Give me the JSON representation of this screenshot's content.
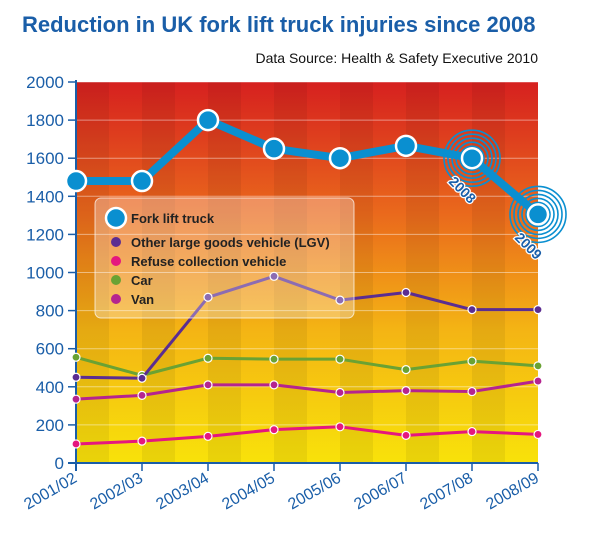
{
  "chart_data": {
    "type": "line",
    "title": "Reduction in UK fork lift truck injuries since 2008",
    "subtitle": "Data Source: Health & Safety Executive 2010",
    "categories": [
      "2001/02",
      "2002/03",
      "2003/04",
      "2004/05",
      "2005/06",
      "2006/07",
      "2007/08",
      "2008/09"
    ],
    "ylim": [
      0,
      2000
    ],
    "yticks": [
      0,
      200,
      400,
      600,
      800,
      1000,
      1200,
      1400,
      1600,
      1800,
      2000
    ],
    "grid": true,
    "legend_position": "center-left",
    "series": [
      {
        "name": "Fork lift truck",
        "color": "#0a8fd0",
        "values": [
          1480,
          1480,
          1800,
          1650,
          1600,
          1665,
          1600,
          1305
        ]
      },
      {
        "name": "Other large goods vehicle (LGV)",
        "color": "#5b2d91",
        "values": [
          450,
          445,
          870,
          980,
          855,
          895,
          805,
          805
        ]
      },
      {
        "name": "Refuse collection vehicle",
        "color": "#e5177e",
        "values": [
          100,
          115,
          140,
          175,
          190,
          145,
          165,
          150
        ]
      },
      {
        "name": "Car",
        "color": "#6aa233",
        "values": [
          555,
          460,
          550,
          545,
          545,
          490,
          535,
          510
        ]
      },
      {
        "name": "Van",
        "color": "#b5248f",
        "values": [
          335,
          355,
          410,
          410,
          370,
          380,
          375,
          430
        ]
      }
    ],
    "annotations": [
      "2008",
      "2009"
    ]
  }
}
